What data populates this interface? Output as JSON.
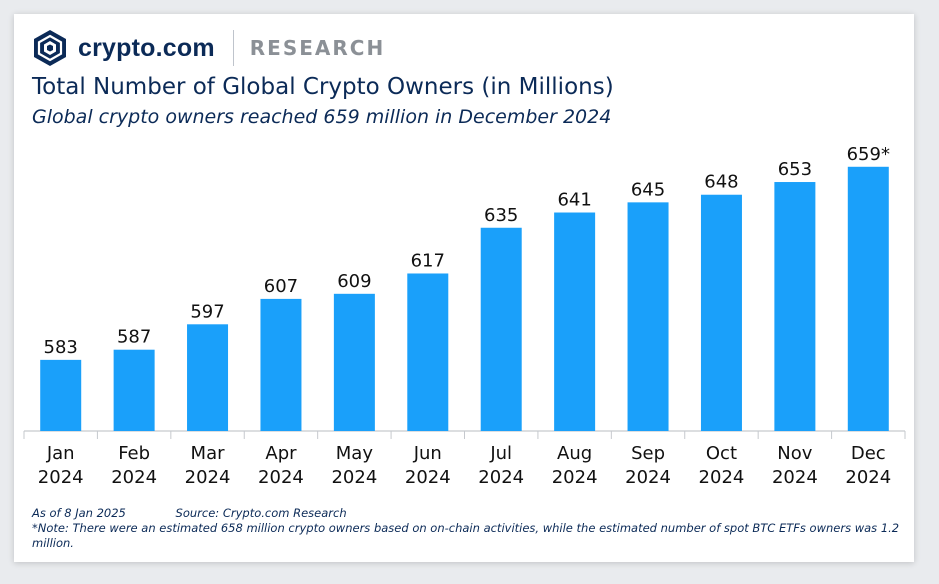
{
  "brand": {
    "logo_name": "crypto.com",
    "section": "RESEARCH",
    "colors": {
      "navy": "#0b2a57",
      "bar": "#1aa0fa",
      "grey": "#8b9096"
    }
  },
  "header": {
    "title": "Total Number of Global Crypto Owners (in Millions)",
    "subtitle": "Global crypto owners reached 659 million in December 2024"
  },
  "chart_data": {
    "type": "bar",
    "categories": [
      [
        "Jan",
        "2024"
      ],
      [
        "Feb",
        "2024"
      ],
      [
        "Mar",
        "2024"
      ],
      [
        "Apr",
        "2024"
      ],
      [
        "May",
        "2024"
      ],
      [
        "Jun",
        "2024"
      ],
      [
        "Jul",
        "2024"
      ],
      [
        "Aug",
        "2024"
      ],
      [
        "Sep",
        "2024"
      ],
      [
        "Oct",
        "2024"
      ],
      [
        "Nov",
        "2024"
      ],
      [
        "Dec",
        "2024"
      ]
    ],
    "values": [
      583,
      587,
      597,
      607,
      609,
      617,
      635,
      641,
      645,
      648,
      653,
      659
    ],
    "data_labels": [
      "583",
      "587",
      "597",
      "607",
      "609",
      "617",
      "635",
      "641",
      "645",
      "648",
      "653",
      "659*"
    ],
    "ylim": [
      555,
      666
    ],
    "grid": false,
    "legend": "none"
  },
  "footer": {
    "as_of": "As of 8 Jan 2025",
    "source": "Source: Crypto.com Research",
    "note": "*Note: There were an estimated 658 million crypto owners based on on-chain activities, while the estimated number of spot BTC ETFs owners was 1.2 million."
  }
}
